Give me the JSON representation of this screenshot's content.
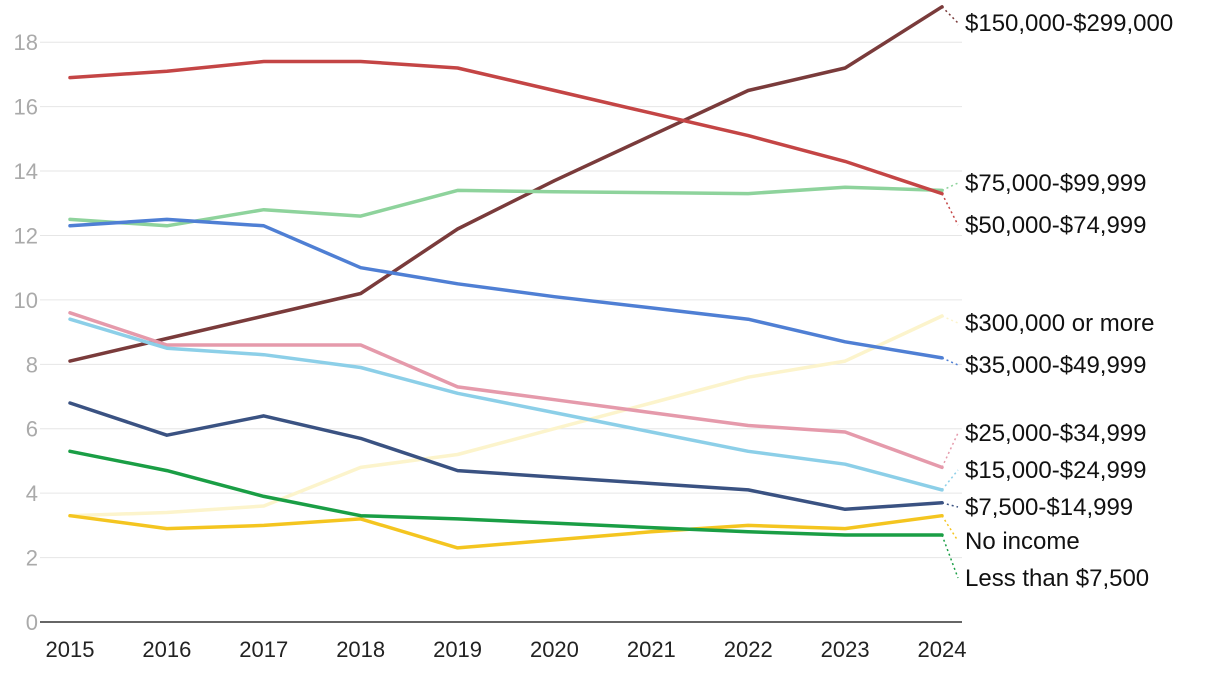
{
  "chart_data": {
    "type": "line",
    "title": "",
    "xlabel": "",
    "ylabel": "",
    "x": [
      "2015",
      "2016",
      "2017",
      "2018",
      "2019",
      "2020",
      "2021",
      "2022",
      "2023",
      "2024"
    ],
    "ylim": [
      0,
      19
    ],
    "yticks": [
      0,
      2,
      4,
      6,
      8,
      10,
      12,
      14,
      16,
      18
    ],
    "grid": true,
    "legend": "direct labels at right end of lines",
    "series": [
      {
        "name": "$150,000-$299,000",
        "color": "#7a3b3b",
        "values": [
          8.1,
          8.8,
          9.5,
          10.2,
          12.2,
          13.7,
          15.1,
          16.5,
          17.2,
          19.1
        ]
      },
      {
        "name": "$75,000-$99,999",
        "color": "#8ed39c",
        "values": [
          12.5,
          12.3,
          12.8,
          12.6,
          13.4,
          13.36,
          13.33,
          13.3,
          13.5,
          13.4
        ]
      },
      {
        "name": "$50,000-$74,999",
        "color": "#c44545",
        "values": [
          16.9,
          17.1,
          17.4,
          17.4,
          17.2,
          16.5,
          15.8,
          15.1,
          14.3,
          13.3
        ]
      },
      {
        "name": "$300,000 or more",
        "color": "#fcf4cc",
        "values": [
          3.3,
          3.4,
          3.6,
          4.8,
          5.2,
          6.0,
          6.8,
          7.6,
          8.1,
          9.5
        ]
      },
      {
        "name": "$35,000-$49,999",
        "color": "#4f7fd4",
        "values": [
          12.3,
          12.5,
          12.3,
          11.0,
          10.5,
          10.1,
          9.75,
          9.4,
          8.7,
          8.2
        ]
      },
      {
        "name": "$25,000-$34,999",
        "color": "#e59aab",
        "values": [
          9.6,
          8.6,
          8.6,
          8.6,
          7.3,
          6.9,
          6.5,
          6.1,
          5.9,
          4.8
        ]
      },
      {
        "name": "$15,000-$24,999",
        "color": "#8ccfe8",
        "values": [
          9.4,
          8.5,
          8.3,
          7.9,
          7.1,
          6.5,
          5.9,
          5.3,
          4.9,
          4.1
        ]
      },
      {
        "name": "$7,500-$14,999",
        "color": "#3a5282",
        "values": [
          6.8,
          5.8,
          6.4,
          5.7,
          4.7,
          4.5,
          4.3,
          4.1,
          3.5,
          3.7
        ]
      },
      {
        "name": "No income",
        "color": "#f4c520",
        "values": [
          3.3,
          2.9,
          3.0,
          3.2,
          2.3,
          2.55,
          2.8,
          3.0,
          2.9,
          3.3
        ]
      },
      {
        "name": "Less than $7,500",
        "color": "#1a9e45",
        "values": [
          5.3,
          4.7,
          3.9,
          3.3,
          3.2,
          3.07,
          2.93,
          2.8,
          2.7,
          2.7
        ]
      }
    ]
  }
}
